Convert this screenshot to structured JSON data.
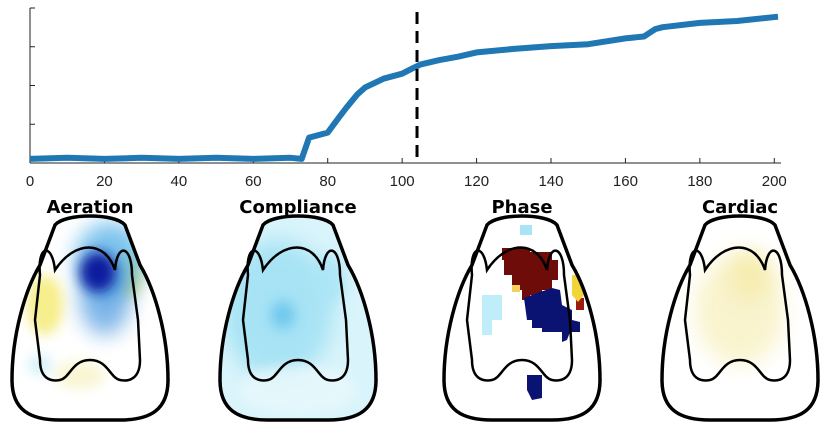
{
  "chart_data": [
    {
      "type": "line",
      "title": "",
      "xlabel": "",
      "ylabel": "",
      "xlim": [
        0,
        201
      ],
      "xticks": [
        0,
        20,
        40,
        60,
        80,
        100,
        120,
        140,
        160,
        180,
        200
      ],
      "ylim": [
        0,
        1
      ],
      "yticks_labeled": false,
      "grid": false,
      "series_color": "#1f77b4",
      "marker_line": {
        "x": 104,
        "style": "dashed",
        "color": "#000000"
      },
      "x": [
        0,
        10,
        20,
        30,
        40,
        50,
        60,
        70,
        73,
        75,
        80,
        83,
        85,
        88,
        90,
        95,
        100,
        103,
        105,
        110,
        115,
        120,
        130,
        140,
        150,
        160,
        165,
        168,
        170,
        180,
        190,
        201
      ],
      "y": [
        0.03,
        0.03,
        0.03,
        0.03,
        0.03,
        0.03,
        0.03,
        0.03,
        0.03,
        0.16,
        0.2,
        0.29,
        0.36,
        0.44,
        0.49,
        0.54,
        0.58,
        0.61,
        0.64,
        0.66,
        0.69,
        0.71,
        0.74,
        0.75,
        0.77,
        0.8,
        0.82,
        0.86,
        0.88,
        0.9,
        0.92,
        0.94
      ]
    },
    {
      "type": "heatmap",
      "panels": [
        {
          "title": "Aeration",
          "colormap": "blue-white-yellow"
        },
        {
          "title": "Compliance",
          "colormap": "cyan-white"
        },
        {
          "title": "Phase",
          "colormap": "blue-white-red"
        },
        {
          "title": "Cardiac",
          "colormap": "white-yellow"
        }
      ]
    }
  ]
}
